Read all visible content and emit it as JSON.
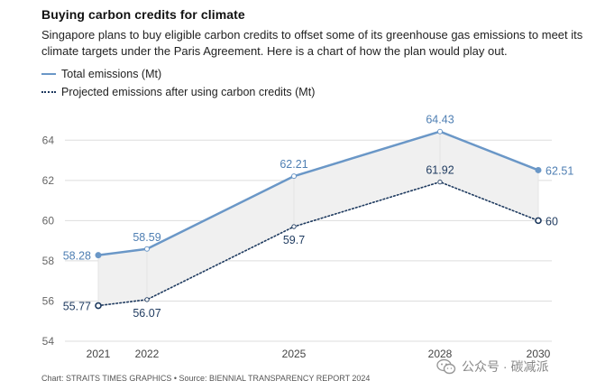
{
  "title": "Buying carbon credits for climate",
  "subtitle": "Singapore plans to buy eligible carbon credits to offset some of its greenhouse gas emissions to meet its climate targets under the Paris Agreement. Here is a chart of how the plan would play out.",
  "legend": {
    "total": "Total emissions (Mt)",
    "projected": "Projected emissions after using carbon credits (Mt)"
  },
  "footer": "Chart: STRAITS TIMES GRAPHICS • Source: BIENNIAL TRANSPARENCY REPORT 2024",
  "watermark": {
    "text": "公众号 · 碳减派",
    "icon": "wechat-icon"
  },
  "colors": {
    "total_line": "#6a97c7",
    "projected_line": "#1e3a5f",
    "band_fill": "#f0f0f0",
    "grid": "#dddddd",
    "tick_text": "#666666"
  },
  "chart_data": {
    "type": "line",
    "x": [
      2021,
      2022,
      2025,
      2028,
      2030
    ],
    "x_tick_labels": [
      "2021",
      "2022",
      "2025",
      "2028",
      "2030"
    ],
    "ylim": [
      54,
      65
    ],
    "y_ticks": [
      54,
      56,
      58,
      60,
      62,
      64
    ],
    "grid": true,
    "legend_position": "top-left",
    "series": [
      {
        "name": "Total emissions (Mt)",
        "values": [
          58.28,
          58.59,
          62.21,
          64.43,
          62.51
        ],
        "labels": [
          "58.28",
          "58.59",
          "62.21",
          "64.43",
          "62.51"
        ],
        "style": "solid"
      },
      {
        "name": "Projected emissions after using carbon credits (Mt)",
        "values": [
          55.77,
          56.07,
          59.7,
          61.92,
          60
        ],
        "labels": [
          "55.77",
          "56.07",
          "59.7",
          "61.92",
          "60"
        ],
        "style": "dotted"
      }
    ],
    "shaded_between_series": true
  }
}
